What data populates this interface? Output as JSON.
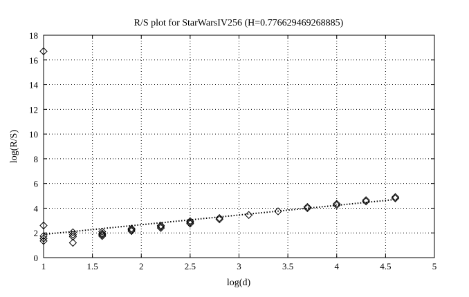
{
  "chart_data": {
    "type": "scatter",
    "title": "R/S plot for StarWarsIV256 (H=0.776629469268885)",
    "xlabel": "log(d)",
    "ylabel": "log(R/S)",
    "xlim": [
      1,
      5
    ],
    "ylim": [
      0,
      18
    ],
    "xticks": [
      1,
      1.5,
      2,
      2.5,
      3,
      3.5,
      4,
      4.5,
      5
    ],
    "xtick_labels": [
      "1",
      "1.5",
      "2",
      "2.5",
      "3",
      "3.5",
      "4",
      "4.5",
      "5"
    ],
    "yticks": [
      0,
      2,
      4,
      6,
      8,
      10,
      12,
      14,
      16,
      18
    ],
    "ytick_labels": [
      "0",
      "2",
      "4",
      "6",
      "8",
      "10",
      "12",
      "14",
      "16",
      "18"
    ],
    "grid": true,
    "marker": "diamond",
    "points": [
      [
        1.0,
        16.7
      ],
      [
        1.0,
        2.6
      ],
      [
        1.0,
        1.75
      ],
      [
        1.0,
        1.55
      ],
      [
        1.0,
        1.35
      ],
      [
        1.3,
        2.05
      ],
      [
        1.3,
        1.85
      ],
      [
        1.3,
        1.7
      ],
      [
        1.3,
        1.2
      ],
      [
        1.6,
        2.1
      ],
      [
        1.6,
        1.95
      ],
      [
        1.6,
        1.85
      ],
      [
        1.6,
        1.75
      ],
      [
        1.9,
        2.35
      ],
      [
        1.9,
        2.25
      ],
      [
        1.9,
        2.15
      ],
      [
        2.2,
        2.6
      ],
      [
        2.2,
        2.5
      ],
      [
        2.2,
        2.4
      ],
      [
        2.5,
        2.95
      ],
      [
        2.5,
        2.85
      ],
      [
        2.5,
        2.75
      ],
      [
        2.8,
        3.2
      ],
      [
        2.8,
        3.1
      ],
      [
        3.1,
        3.45
      ],
      [
        3.4,
        3.75
      ],
      [
        3.7,
        4.1
      ],
      [
        3.7,
        4.0
      ],
      [
        4.0,
        4.35
      ],
      [
        4.0,
        4.25
      ],
      [
        4.3,
        4.65
      ],
      [
        4.3,
        4.55
      ],
      [
        4.6,
        4.9
      ],
      [
        4.6,
        4.8
      ]
    ],
    "fit_line": {
      "x": [
        1.0,
        4.62
      ],
      "y": [
        1.88,
        4.72
      ],
      "style": "dotted"
    }
  }
}
